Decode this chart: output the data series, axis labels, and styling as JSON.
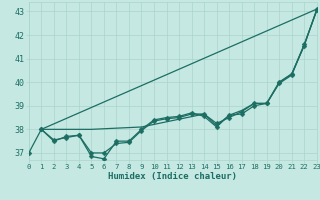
{
  "xlabel": "Humidex (Indice chaleur)",
  "xlim": [
    0,
    23
  ],
  "ylim": [
    36.7,
    43.4
  ],
  "yticks": [
    37,
    38,
    39,
    40,
    41,
    42,
    43
  ],
  "xticks": [
    0,
    1,
    2,
    3,
    4,
    5,
    6,
    7,
    8,
    9,
    10,
    11,
    12,
    13,
    14,
    15,
    16,
    17,
    18,
    19,
    20,
    21,
    22,
    23
  ],
  "bg_color": "#c5e8e3",
  "grid_color": "#aad4cc",
  "line_color": "#1c6e62",
  "line1_x": [
    0,
    1,
    2,
    3,
    4,
    5,
    6,
    7,
    8,
    9,
    10,
    11,
    12,
    13,
    14,
    15,
    16,
    17,
    18,
    19,
    20,
    21,
    22,
    23
  ],
  "line1_y": [
    37.0,
    38.0,
    37.5,
    37.7,
    37.75,
    36.85,
    36.75,
    37.5,
    37.5,
    38.0,
    38.4,
    38.5,
    38.55,
    38.7,
    38.55,
    38.1,
    38.6,
    38.65,
    39.0,
    39.1,
    40.0,
    40.35,
    41.55,
    43.1
  ],
  "line2_x": [
    1,
    2,
    3,
    4,
    5,
    6,
    7,
    8,
    9,
    10,
    11,
    12,
    13,
    14,
    15,
    16,
    17,
    18,
    19,
    20,
    21,
    22,
    23
  ],
  "line2_y": [
    38.0,
    37.55,
    37.65,
    37.75,
    37.0,
    37.0,
    37.4,
    37.45,
    37.95,
    38.35,
    38.45,
    38.5,
    38.65,
    38.65,
    38.25,
    38.5,
    38.75,
    39.1,
    39.1,
    39.95,
    40.3,
    41.6,
    43.05
  ],
  "line3_x": [
    1,
    23
  ],
  "line3_y": [
    38.0,
    43.1
  ],
  "line4_x": [
    1,
    5,
    9,
    14,
    15,
    16,
    17,
    18,
    19,
    20,
    21,
    22,
    23
  ],
  "line4_y": [
    38.0,
    38.0,
    38.1,
    38.65,
    38.15,
    38.6,
    38.8,
    39.1,
    39.1,
    40.0,
    40.35,
    41.6,
    43.05
  ]
}
